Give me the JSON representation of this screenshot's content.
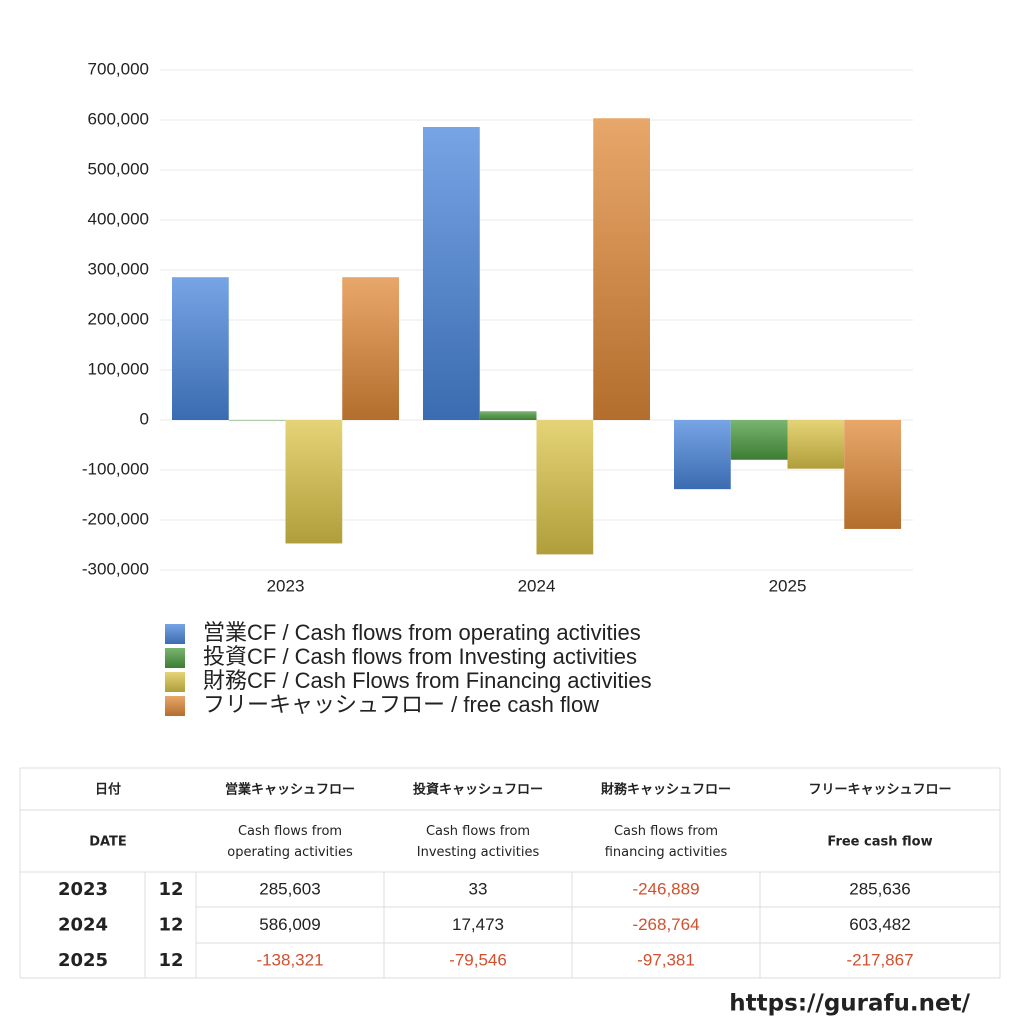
{
  "chart_data": {
    "type": "bar",
    "categories": [
      "2023",
      "2024",
      "2025"
    ],
    "series": [
      {
        "name": "営業CF / Cash flows from operating activities",
        "color": "#4a86dc",
        "values": [
          285603,
          586009,
          -138321
        ]
      },
      {
        "name": "投資CF / Cash flows from Investing activities",
        "color": "#4c9c40",
        "values": [
          33,
          17473,
          -79546
        ]
      },
      {
        "name": "財務CF / Cash Flows from Financing activities",
        "color": "#dcc64a",
        "values": [
          -246889,
          -268764,
          -97381
        ]
      },
      {
        "name": "フリーキャッシュフロー / free cash flow",
        "color": "#e08a38",
        "values": [
          285636,
          603482,
          -217867
        ]
      }
    ],
    "ylim": [
      -300000,
      700000
    ],
    "yticks": [
      {
        "value": -300000,
        "label": "-300,000"
      },
      {
        "value": -200000,
        "label": "-200,000"
      },
      {
        "value": -100000,
        "label": "-100,000"
      },
      0,
      {
        "value": 100000,
        "label": "100,000"
      },
      {
        "value": 200000,
        "label": "200,000"
      },
      {
        "value": 300000,
        "label": "300,000"
      },
      {
        "value": 400000,
        "label": "400,000"
      },
      {
        "value": 500000,
        "label": "500,000"
      },
      {
        "value": 600000,
        "label": "600,000"
      },
      {
        "value": 700000,
        "label": "700,000"
      }
    ],
    "grid": true
  },
  "table": {
    "headers_ja": [
      "日付",
      "営業キャッシュフロー",
      "投資キャッシュフロー",
      "財務キャッシュフロー",
      "フリーキャッシュフロー"
    ],
    "headers_en": [
      [
        "DATE"
      ],
      [
        "Cash flows from",
        "operating activities"
      ],
      [
        "Cash flows from",
        "Investing activities"
      ],
      [
        "Cash flows from",
        "financing activities"
      ],
      [
        "Free cash flow"
      ]
    ],
    "rows": [
      [
        "2023",
        "12",
        "285,603",
        "33",
        "-246,889",
        "285,636"
      ],
      [
        "2024",
        "12",
        "586,009",
        "17,473",
        "-268,764",
        "603,482"
      ],
      [
        "2025",
        "12",
        "-138,321",
        "-79,546",
        "-97,381",
        "-217,867"
      ]
    ]
  },
  "footer": "https://gurafu.net/"
}
